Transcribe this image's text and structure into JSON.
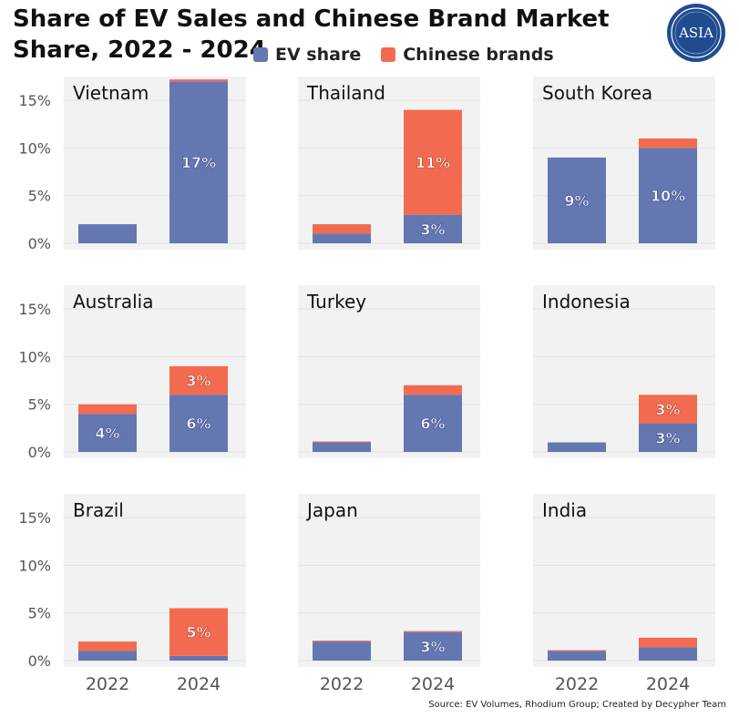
{
  "header": {
    "title": "Share of EV Sales and Chinese Brand Market Share, 2022 - 2024",
    "logo_text": "ASIA"
  },
  "legend": {
    "items": [
      {
        "label": "EV share",
        "color": "#6477b0"
      },
      {
        "label": "Chinese brands",
        "color": "#f26b50"
      }
    ]
  },
  "source": "Source: EV Volumes, Rhodium Group; Created by Decypher Team",
  "chart_data": {
    "type": "bar",
    "stacked": true,
    "categories": [
      "2022",
      "2024"
    ],
    "y_ticks": [
      "0%",
      "5%",
      "10%",
      "15%"
    ],
    "ylim": [
      0,
      17.5
    ],
    "grid": true,
    "legend_position": "top",
    "colors": {
      "ev": "#6477b0",
      "chinese": "#f26b50"
    },
    "panels": [
      {
        "country": "Vietnam",
        "ev": [
          2,
          17
        ],
        "chinese": [
          0,
          0.2
        ],
        "ev_labels": [
          "",
          "17%"
        ],
        "chinese_labels": [
          "",
          ""
        ]
      },
      {
        "country": "Thailand",
        "ev": [
          1,
          3
        ],
        "chinese": [
          1,
          11
        ],
        "ev_labels": [
          "",
          "3%"
        ],
        "chinese_labels": [
          "",
          "11%"
        ]
      },
      {
        "country": "South Korea",
        "ev": [
          9,
          10
        ],
        "chinese": [
          0,
          1
        ],
        "ev_labels": [
          "9%",
          "10%"
        ],
        "chinese_labels": [
          "",
          ""
        ]
      },
      {
        "country": "Australia",
        "ev": [
          4,
          6
        ],
        "chinese": [
          1,
          3
        ],
        "ev_labels": [
          "4%",
          "6%"
        ],
        "chinese_labels": [
          "",
          "3%"
        ]
      },
      {
        "country": "Turkey",
        "ev": [
          1,
          6
        ],
        "chinese": [
          0.1,
          1
        ],
        "ev_labels": [
          "",
          "6%"
        ],
        "chinese_labels": [
          "",
          ""
        ]
      },
      {
        "country": "Indonesia",
        "ev": [
          1,
          3
        ],
        "chinese": [
          0,
          3
        ],
        "ev_labels": [
          "",
          "3%"
        ],
        "chinese_labels": [
          "",
          "3%"
        ]
      },
      {
        "country": "Brazil",
        "ev": [
          1,
          0.5
        ],
        "chinese": [
          1,
          5
        ],
        "ev_labels": [
          "",
          ""
        ],
        "chinese_labels": [
          "",
          "5%"
        ]
      },
      {
        "country": "Japan",
        "ev": [
          2,
          3
        ],
        "chinese": [
          0.1,
          0.1
        ],
        "ev_labels": [
          "",
          "3%"
        ],
        "chinese_labels": [
          "",
          ""
        ]
      },
      {
        "country": "India",
        "ev": [
          1,
          1.4
        ],
        "chinese": [
          0.1,
          1
        ],
        "ev_labels": [
          "",
          ""
        ],
        "chinese_labels": [
          "",
          ""
        ]
      }
    ]
  }
}
